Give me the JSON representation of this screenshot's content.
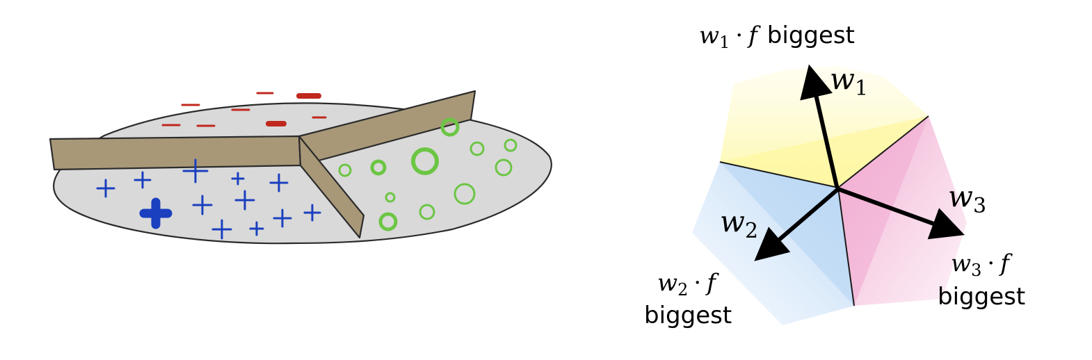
{
  "left_panel": {
    "colors": {
      "disc_fill": "#d9d9d9",
      "outline": "#2b2b2b",
      "wall": "#a89878",
      "minus": "#c0281e",
      "plus": "#1a3fbf",
      "circle": "#6cc644"
    },
    "icons": [
      "minus-icon",
      "plus-icon",
      "circle-icon"
    ]
  },
  "right_panel": {
    "vectors": [
      {
        "id": "w1",
        "var": "w",
        "sub": "1"
      },
      {
        "id": "w2",
        "var": "w",
        "sub": "2"
      },
      {
        "id": "w3",
        "var": "w",
        "sub": "3"
      }
    ],
    "region_labels": [
      {
        "id": "region-1",
        "var": "w",
        "sub": "1",
        "dot": "·",
        "feature": "f",
        "word": "biggest"
      },
      {
        "id": "region-2",
        "var": "w",
        "sub": "2",
        "dot": "·",
        "feature": "f",
        "word": "biggest"
      },
      {
        "id": "region-3",
        "var": "w",
        "sub": "3",
        "dot": "·",
        "feature": "f",
        "word": "biggest"
      }
    ],
    "colors": {
      "region_1": "#fff8b0",
      "region_2": "#bcd9f5",
      "region_3": "#f3b8d6",
      "arrow": "#000000"
    }
  }
}
